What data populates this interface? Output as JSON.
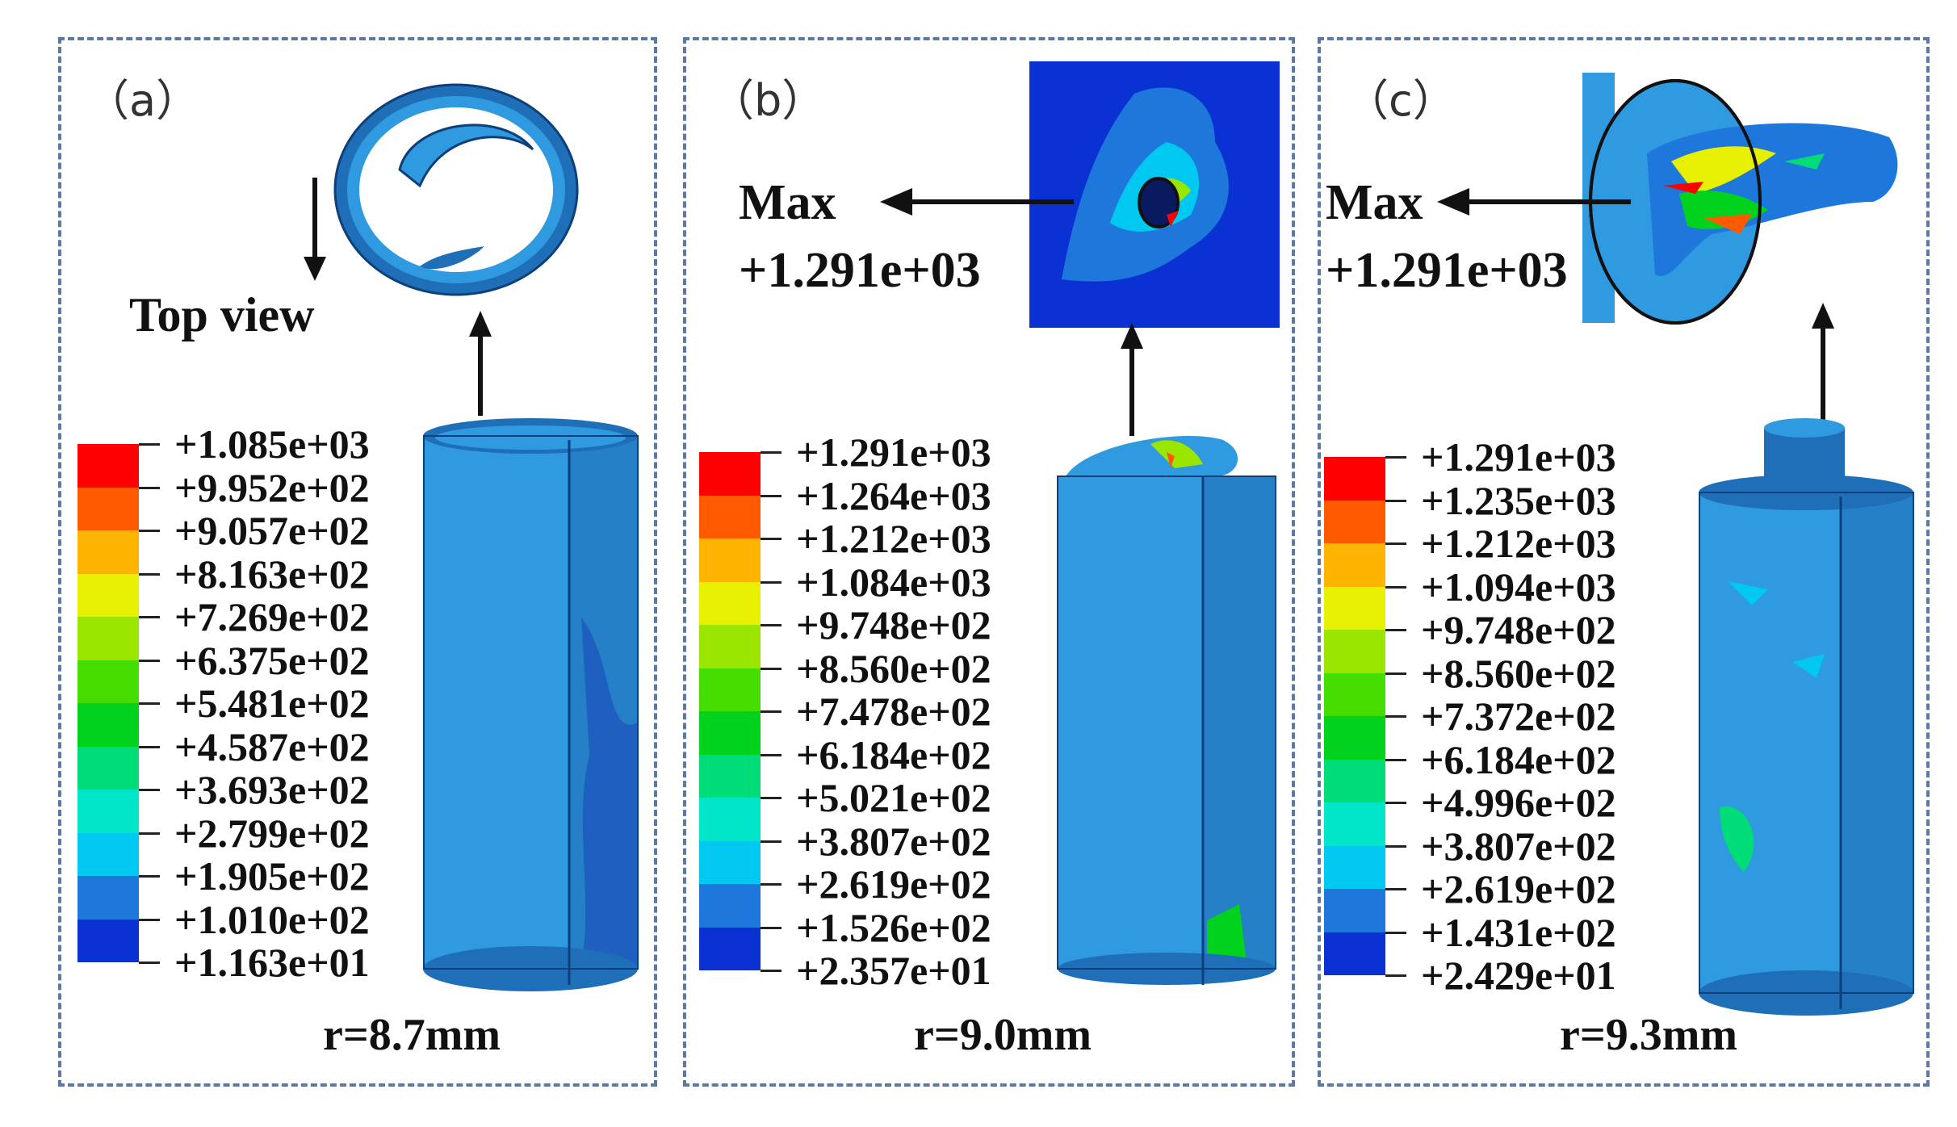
{
  "panels": [
    {
      "label": "（a）",
      "annotation": "Top view",
      "radius": "r=8.7mm",
      "legend": [
        "+1.085e+03",
        "+9.952e+02",
        "+9.057e+02",
        "+8.163e+02",
        "+7.269e+02",
        "+6.375e+02",
        "+5.481e+02",
        "+4.587e+02",
        "+3.693e+02",
        "+2.799e+02",
        "+1.905e+02",
        "+1.010e+02",
        "+1.163e+01"
      ]
    },
    {
      "label": "（b）",
      "max_label": "Max",
      "max_value": "+1.291e+03",
      "radius": "r=9.0mm",
      "legend": [
        "+1.291e+03",
        "+1.264e+03",
        "+1.212e+03",
        "+1.084e+03",
        "+9.748e+02",
        "+8.560e+02",
        "+7.478e+02",
        "+6.184e+02",
        "+5.021e+02",
        "+3.807e+02",
        "+2.619e+02",
        "+1.526e+02",
        "+2.357e+01"
      ]
    },
    {
      "label": "（c）",
      "max_label": "Max",
      "max_value": "+1.291e+03",
      "radius": "r=9.3mm",
      "legend": [
        "+1.291e+03",
        "+1.235e+03",
        "+1.212e+03",
        "+1.094e+03",
        "+9.748e+02",
        "+8.560e+02",
        "+7.372e+02",
        "+6.184e+02",
        "+4.996e+02",
        "+3.807e+02",
        "+2.619e+02",
        "+1.431e+02",
        "+2.429e+01"
      ]
    }
  ],
  "colors": {
    "scale": [
      "#ff0000",
      "#ff5a00",
      "#ffb400",
      "#e6f000",
      "#9be600",
      "#45dc00",
      "#00d21e",
      "#00dc78",
      "#00e6c8",
      "#00c8f0",
      "#1e78dc",
      "#0a32d2"
    ],
    "border": "#5b79a6",
    "shell": "#2f9ae0",
    "shell_dark": "#1f6fb8"
  }
}
